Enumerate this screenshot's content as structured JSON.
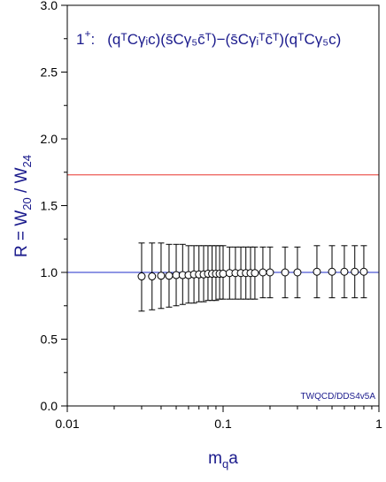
{
  "chart_data": {
    "type": "scatter",
    "xscale": "log",
    "xlim": [
      0.01,
      1
    ],
    "ylim": [
      0.0,
      3.0
    ],
    "x_tick_labels": [
      "0.01",
      "0.1",
      "1"
    ],
    "y_tick_labels": [
      "0.0",
      "0.5",
      "1.0",
      "1.5",
      "2.0",
      "2.5",
      "3.0"
    ],
    "xlabel": {
      "base": "m",
      "sub": "q",
      "tail": "a"
    },
    "ylabel": {
      "p1": "R = W",
      "s1": "20",
      "p2": " / W",
      "s2": "24"
    },
    "annotation": {
      "main": "1",
      "sup": "+",
      "colon": ":",
      "formula": "(qᵀCγᵢc)(s̄Cγ₅c̄ᵀ)−(s̄Cγᵢᵀc̄ᵀ)(qᵀCγ₅c)"
    },
    "credit": "TWQCD/DDS4v5A",
    "reference_lines": [
      {
        "y": 1.73,
        "color": "#e8352f"
      },
      {
        "y": 1.0,
        "color": "#1f2ec8"
      }
    ],
    "points": [
      {
        "x": 0.03,
        "y": 0.97,
        "ylo": 0.71,
        "yhi": 1.22
      },
      {
        "x": 0.035,
        "y": 0.97,
        "ylo": 0.72,
        "yhi": 1.22
      },
      {
        "x": 0.04,
        "y": 0.975,
        "ylo": 0.73,
        "yhi": 1.22
      },
      {
        "x": 0.045,
        "y": 0.975,
        "ylo": 0.74,
        "yhi": 1.21
      },
      {
        "x": 0.05,
        "y": 0.98,
        "ylo": 0.75,
        "yhi": 1.21
      },
      {
        "x": 0.055,
        "y": 0.98,
        "ylo": 0.76,
        "yhi": 1.21
      },
      {
        "x": 0.06,
        "y": 0.98,
        "ylo": 0.77,
        "yhi": 1.2
      },
      {
        "x": 0.065,
        "y": 0.985,
        "ylo": 0.77,
        "yhi": 1.2
      },
      {
        "x": 0.07,
        "y": 0.985,
        "ylo": 0.78,
        "yhi": 1.2
      },
      {
        "x": 0.075,
        "y": 0.985,
        "ylo": 0.78,
        "yhi": 1.2
      },
      {
        "x": 0.08,
        "y": 0.99,
        "ylo": 0.79,
        "yhi": 1.2
      },
      {
        "x": 0.085,
        "y": 0.99,
        "ylo": 0.79,
        "yhi": 1.2
      },
      {
        "x": 0.09,
        "y": 0.99,
        "ylo": 0.79,
        "yhi": 1.2
      },
      {
        "x": 0.095,
        "y": 0.99,
        "ylo": 0.8,
        "yhi": 1.2
      },
      {
        "x": 0.1,
        "y": 0.99,
        "ylo": 0.8,
        "yhi": 1.2
      },
      {
        "x": 0.11,
        "y": 0.995,
        "ylo": 0.8,
        "yhi": 1.19
      },
      {
        "x": 0.12,
        "y": 0.995,
        "ylo": 0.8,
        "yhi": 1.19
      },
      {
        "x": 0.13,
        "y": 0.995,
        "ylo": 0.8,
        "yhi": 1.19
      },
      {
        "x": 0.14,
        "y": 0.995,
        "ylo": 0.8,
        "yhi": 1.19
      },
      {
        "x": 0.15,
        "y": 0.995,
        "ylo": 0.8,
        "yhi": 1.19
      },
      {
        "x": 0.16,
        "y": 0.995,
        "ylo": 0.8,
        "yhi": 1.19
      },
      {
        "x": 0.18,
        "y": 1.0,
        "ylo": 0.81,
        "yhi": 1.19
      },
      {
        "x": 0.2,
        "y": 1.0,
        "ylo": 0.81,
        "yhi": 1.19
      },
      {
        "x": 0.25,
        "y": 1.0,
        "ylo": 0.81,
        "yhi": 1.19
      },
      {
        "x": 0.3,
        "y": 1.0,
        "ylo": 0.81,
        "yhi": 1.19
      },
      {
        "x": 0.4,
        "y": 1.005,
        "ylo": 0.81,
        "yhi": 1.2
      },
      {
        "x": 0.5,
        "y": 1.005,
        "ylo": 0.81,
        "yhi": 1.2
      },
      {
        "x": 0.6,
        "y": 1.005,
        "ylo": 0.81,
        "yhi": 1.2
      },
      {
        "x": 0.7,
        "y": 1.005,
        "ylo": 0.81,
        "yhi": 1.2
      },
      {
        "x": 0.8,
        "y": 1.005,
        "ylo": 0.81,
        "yhi": 1.2
      }
    ],
    "colors": {
      "axis": "#000000",
      "points": "#000000",
      "text": "#1a1a8c"
    }
  }
}
